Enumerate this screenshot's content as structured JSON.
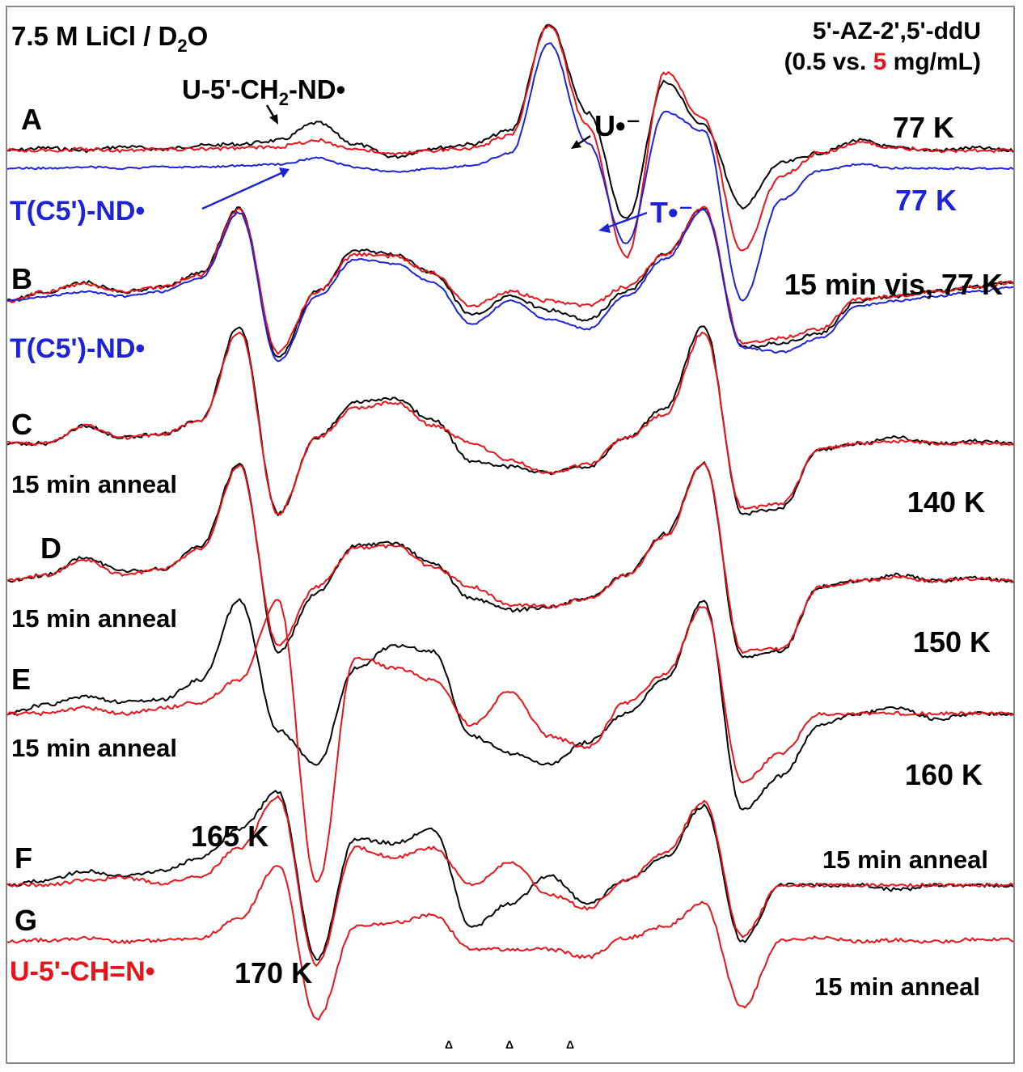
{
  "colors": {
    "black": "#000000",
    "red": "#e8141b",
    "blue": "#1e23d6",
    "frame": "#8a8a8a"
  },
  "chart_data": {
    "type": "line",
    "title": "",
    "xlabel": "",
    "ylabel": "",
    "xlim": [
      0,
      100
    ],
    "grid": false,
    "legend": "none",
    "header": {
      "solvent": "7.5 M LiCl / D",
      "solvent_sub": "2",
      "solvent_tail": "O",
      "compound": "5'-AZ-2',5'-ddU",
      "conc_open": "(0.5 vs. ",
      "conc_red": "5",
      "conc_close": " mg/mL)"
    },
    "panels": [
      {
        "id": "A",
        "label": "A",
        "temp": "77 K",
        "temp2": "77 K",
        "note": ""
      },
      {
        "id": "B",
        "label": "B",
        "temp": "15 min vis, 77 K",
        "note": ""
      },
      {
        "id": "C",
        "label": "C",
        "temp": "140 K",
        "note": "15 min anneal"
      },
      {
        "id": "D",
        "label": "D",
        "temp": "150 K",
        "note": "15 min anneal"
      },
      {
        "id": "E",
        "label": "E",
        "temp": "160 K",
        "note": "15 min anneal"
      },
      {
        "id": "F",
        "label": "F",
        "temp": "165 K",
        "note": "15 min anneal"
      },
      {
        "id": "G",
        "label": "G",
        "temp": "170 K",
        "note": "15 min anneal"
      }
    ],
    "annotations": {
      "u_ch2nd": "U-5'-CH",
      "u_ch2nd_sub": "2",
      "u_ch2nd_tail": "-ND•",
      "u_anion": "U•⁻",
      "t_anion": "T•⁻",
      "t_c5_nd_A": "T(C5')-ND•",
      "t_c5_nd_B": "T(C5')-ND•",
      "u_ch_n": "U-5'-CH=N•"
    },
    "series": [
      {
        "panel": "A",
        "color": "black",
        "y": [
          0.0,
          0.02,
          0.0,
          0.03,
          0.01,
          0.04,
          0.05,
          0.08,
          0.22,
          0.05,
          -0.05,
          0.02,
          0.05,
          0.16,
          1.0,
          0.3,
          -0.55,
          0.55,
          0.2,
          -0.45,
          -0.1,
          -0.02,
          0.08,
          0.02,
          0.0,
          0.02,
          0.0
        ]
      },
      {
        "panel": "A",
        "color": "red",
        "y": [
          0.0,
          0.0,
          0.01,
          0.0,
          0.01,
          0.01,
          0.02,
          0.03,
          0.08,
          0.01,
          -0.03,
          0.0,
          0.02,
          0.12,
          1.0,
          0.2,
          -0.85,
          0.62,
          0.25,
          -0.8,
          -0.2,
          -0.02,
          0.06,
          0.02,
          0.0,
          0.0,
          0.0
        ]
      },
      {
        "panel": "A",
        "color": "blue",
        "y": [
          0.0,
          0.0,
          0.01,
          0.0,
          0.01,
          0.01,
          0.02,
          0.03,
          0.08,
          0.01,
          -0.03,
          0.0,
          0.02,
          0.12,
          1.0,
          0.2,
          -0.6,
          0.45,
          0.3,
          -1.05,
          -0.25,
          -0.02,
          0.03,
          0.0,
          0.0,
          0.0,
          0.0
        ]
      },
      {
        "panel": "B",
        "color": "black",
        "y": [
          0.0,
          0.1,
          0.2,
          0.1,
          0.15,
          0.3,
          1.0,
          -0.6,
          0.1,
          0.55,
          0.5,
          0.3,
          -0.15,
          0.05,
          -0.1,
          -0.2,
          0.1,
          0.5,
          1.0,
          -0.5,
          -0.45,
          -0.35,
          0.0,
          0.05,
          0.1,
          0.15,
          0.2
        ]
      },
      {
        "panel": "B",
        "color": "red",
        "y": [
          0.0,
          0.1,
          0.18,
          0.1,
          0.15,
          0.28,
          0.98,
          -0.55,
          0.1,
          0.5,
          0.48,
          0.3,
          -0.05,
          0.1,
          0.0,
          -0.05,
          0.15,
          0.5,
          1.0,
          -0.45,
          -0.4,
          -0.3,
          0.02,
          0.05,
          0.1,
          0.15,
          0.2
        ]
      },
      {
        "panel": "B",
        "color": "blue",
        "y": [
          0.0,
          0.05,
          0.1,
          0.05,
          0.1,
          0.25,
          0.95,
          -0.65,
          0.05,
          0.45,
          0.4,
          0.2,
          -0.25,
          0.0,
          -0.2,
          -0.3,
          0.05,
          0.45,
          0.98,
          -0.5,
          -0.55,
          -0.4,
          -0.05,
          0.0,
          0.05,
          0.1,
          0.15
        ]
      },
      {
        "panel": "C",
        "color": "black",
        "y": [
          0.0,
          0.0,
          0.15,
          0.05,
          0.08,
          0.2,
          1.0,
          -0.6,
          0.05,
          0.35,
          0.38,
          0.2,
          -0.15,
          -0.2,
          -0.25,
          -0.2,
          0.05,
          0.3,
          1.0,
          -0.6,
          -0.55,
          -0.05,
          0.0,
          0.05,
          0.0,
          0.02,
          0.0
        ]
      },
      {
        "panel": "C",
        "color": "red",
        "y": [
          0.0,
          0.0,
          0.15,
          0.05,
          0.08,
          0.2,
          0.95,
          -0.6,
          0.05,
          0.3,
          0.35,
          0.15,
          0.0,
          -0.15,
          -0.25,
          -0.18,
          0.05,
          0.25,
          0.95,
          -0.55,
          -0.52,
          -0.05,
          0.0,
          0.02,
          0.0,
          0.0,
          0.0
        ]
      },
      {
        "panel": "D",
        "color": "black",
        "y": [
          0.0,
          0.05,
          0.2,
          0.08,
          0.1,
          0.3,
          1.0,
          -0.6,
          -0.1,
          0.3,
          0.32,
          0.15,
          -0.15,
          -0.25,
          -0.22,
          -0.15,
          0.05,
          0.4,
          1.0,
          -0.65,
          -0.6,
          -0.05,
          0.0,
          0.05,
          0.0,
          0.03,
          0.0
        ]
      },
      {
        "panel": "D",
        "color": "red",
        "y": [
          0.0,
          0.05,
          0.18,
          0.05,
          0.1,
          0.28,
          0.98,
          -0.55,
          -0.05,
          0.28,
          0.3,
          0.12,
          -0.05,
          -0.2,
          -0.22,
          -0.15,
          0.05,
          0.38,
          1.0,
          -0.6,
          -0.58,
          -0.05,
          0.0,
          0.03,
          0.0,
          0.02,
          0.0
        ]
      },
      {
        "panel": "E",
        "color": "black",
        "y": [
          0.0,
          0.08,
          0.15,
          0.1,
          0.12,
          0.3,
          1.0,
          -0.15,
          -0.45,
          0.4,
          0.6,
          0.55,
          -0.2,
          -0.35,
          -0.45,
          -0.25,
          0.0,
          0.3,
          1.0,
          -0.85,
          -0.55,
          -0.1,
          0.0,
          0.05,
          -0.05,
          0.0,
          0.0
        ]
      },
      {
        "panel": "E",
        "color": "red",
        "y": [
          0.0,
          0.0,
          0.05,
          0.0,
          0.05,
          0.1,
          0.3,
          1.0,
          -1.5,
          0.5,
          0.4,
          0.3,
          -0.1,
          0.2,
          -0.2,
          -0.3,
          0.1,
          0.35,
          0.95,
          -0.6,
          -0.35,
          0.0,
          0.0,
          0.0,
          0.0,
          0.0,
          0.0
        ]
      },
      {
        "panel": "F",
        "color": "black",
        "y": [
          0.0,
          0.05,
          0.15,
          0.1,
          0.15,
          0.3,
          0.6,
          1.0,
          -0.8,
          0.5,
          0.45,
          0.6,
          -0.45,
          -0.2,
          0.1,
          -0.2,
          0.05,
          0.3,
          0.85,
          -0.6,
          0.0,
          0.0,
          0.0,
          -0.05,
          0.0,
          0.0,
          0.0
        ]
      },
      {
        "panel": "F",
        "color": "red",
        "y": [
          0.0,
          0.0,
          0.05,
          0.08,
          0.02,
          0.1,
          0.4,
          0.95,
          -0.85,
          0.4,
          0.3,
          0.4,
          0.0,
          0.25,
          -0.1,
          -0.25,
          0.05,
          0.35,
          0.9,
          -0.55,
          0.0,
          0.0,
          0.0,
          0.0,
          0.0,
          0.0,
          0.0
        ]
      },
      {
        "panel": "G",
        "color": "red",
        "y": [
          0.0,
          0.02,
          0.05,
          0.0,
          0.02,
          0.05,
          0.3,
          1.0,
          -1.0,
          0.2,
          0.25,
          0.35,
          -0.1,
          -0.1,
          -0.1,
          -0.2,
          0.05,
          0.2,
          0.5,
          -0.85,
          0.02,
          0.05,
          0.0,
          0.02,
          0.0,
          0.03,
          0.02
        ]
      }
    ],
    "markers": [
      "Δ",
      "Δ",
      "Δ"
    ]
  }
}
